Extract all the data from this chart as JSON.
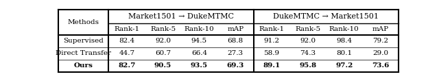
{
  "title_left": "Market1501 → DukeMTMC",
  "title_right": "DukeMTMC → Market1501",
  "col_headers": [
    "Rank-1",
    "Rank-5",
    "Rank-10",
    "mAP",
    "Rank-1",
    "Rank-5",
    "Rank-10",
    "mAP"
  ],
  "row_labels": [
    "Supervised",
    "Direct Transfer",
    "Ours"
  ],
  "row_labels_bold": [
    false,
    false,
    true
  ],
  "data": [
    [
      "82.4",
      "92.0",
      "94.5",
      "68.8",
      "91.2",
      "92.0",
      "98.4",
      "79.2"
    ],
    [
      "44.7",
      "60.7",
      "66.4",
      "27.3",
      "58.9",
      "74.3",
      "80.1",
      "29.0"
    ],
    [
      "82.7",
      "90.5",
      "93.5",
      "69.3",
      "89.1",
      "95.8",
      "97.2",
      "73.6"
    ]
  ],
  "bg_color": "#ffffff",
  "figsize": [
    6.4,
    1.18
  ],
  "dpi": 100,
  "fs_group": 8.0,
  "fs_subheader": 7.5,
  "fs_data": 7.5,
  "fs_methods": 7.5
}
